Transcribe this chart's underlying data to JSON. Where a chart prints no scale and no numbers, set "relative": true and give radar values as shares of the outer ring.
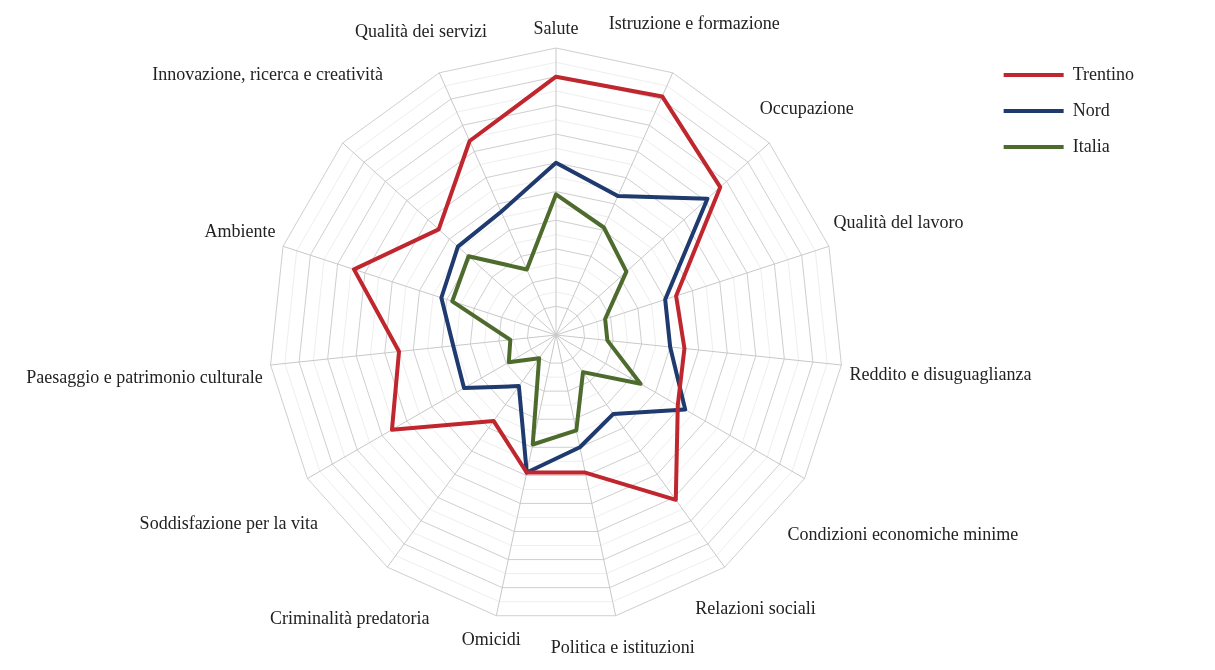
{
  "chart_data": {
    "type": "radar",
    "relative": true,
    "categories": [
      "Salute",
      "Istruzione e formazione",
      "Occupazione",
      "Qualità del lavoro",
      "Reddito e disuguaglianza",
      "Condizioni economiche minime",
      "Relazioni sociali",
      "Politica e istituzioni",
      "Omicidi",
      "Criminalità predatoria",
      "Soddisfazione per la vita",
      "Paesaggio e patrimonio culturale",
      "Ambiente",
      "Innovazione, ricerca e creatività",
      "Qualità dei servizi"
    ],
    "series": [
      {
        "name": "Trentino",
        "color": "#c0262d",
        "values": [
          0.9,
          0.91,
          0.77,
          0.44,
          0.45,
          0.49,
          0.71,
          0.49,
          0.49,
          0.37,
          0.66,
          0.55,
          0.74,
          0.55,
          0.74
        ]
      },
      {
        "name": "Nord",
        "color": "#1f3a6e",
        "values": [
          0.6,
          0.53,
          0.71,
          0.4,
          0.4,
          0.52,
          0.34,
          0.4,
          0.49,
          0.22,
          0.37,
          0.36,
          0.42,
          0.46,
          0.47
        ]
      },
      {
        "name": "Italia",
        "color": "#4e6b2e",
        "values": [
          0.49,
          0.41,
          0.33,
          0.18,
          0.18,
          0.34,
          0.16,
          0.34,
          0.39,
          0.1,
          0.19,
          0.16,
          0.38,
          0.41,
          0.25
        ]
      }
    ],
    "grid": true,
    "legend": "top right",
    "marker": "none",
    "line_style": "solid"
  }
}
